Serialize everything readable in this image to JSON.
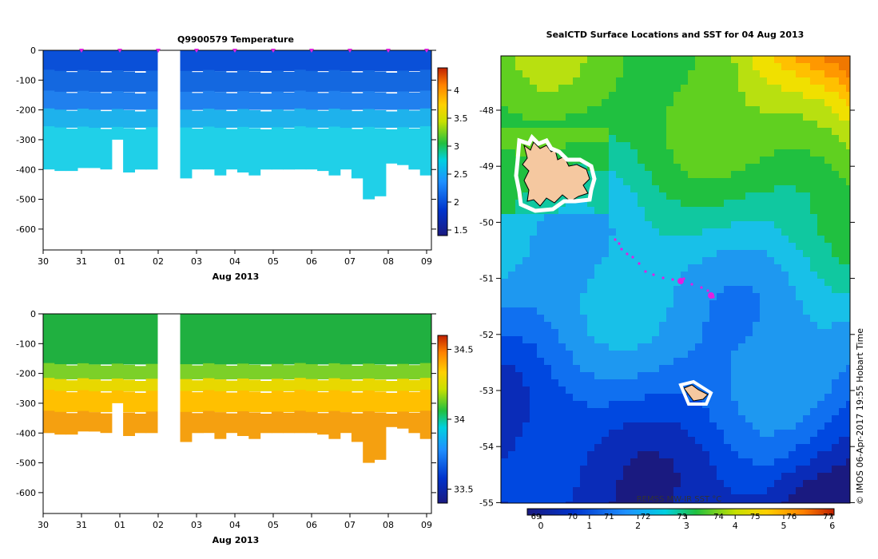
{
  "chart_data": [
    {
      "type": "heatmap",
      "title": "Q9900579  Temperature",
      "xlabel": "Aug 2013",
      "x_ticks": [
        "30",
        "31",
        "01",
        "02",
        "03",
        "04",
        "05",
        "06",
        "07",
        "08",
        "09"
      ],
      "y_ticks": [
        "0",
        "-100",
        "-200",
        "-300",
        "-400",
        "-500",
        "-600"
      ],
      "ylim": [
        -670,
        0
      ],
      "colorbar": {
        "ticks": [
          "4",
          "3.5",
          "3",
          "2.5",
          "2",
          "1.5"
        ],
        "range": [
          1.4,
          4.4
        ]
      },
      "profile_depths": [
        400,
        405,
        405,
        395,
        395,
        400,
        300,
        410,
        400,
        400,
        0,
        0,
        430,
        400,
        400,
        420,
        400,
        410,
        420,
        400,
        400,
        400,
        400,
        400,
        405,
        420,
        400,
        430,
        500,
        490,
        380,
        385,
        400,
        420
      ]
    },
    {
      "type": "heatmap",
      "xlabel": "Aug 2013",
      "x_ticks": [
        "30",
        "31",
        "01",
        "02",
        "03",
        "04",
        "05",
        "06",
        "07",
        "08",
        "09"
      ],
      "y_ticks": [
        "0",
        "-100",
        "-200",
        "-300",
        "-400",
        "-500",
        "-600"
      ],
      "ylim": [
        -670,
        0
      ],
      "colorbar": {
        "ticks": [
          "34.5",
          "34",
          "33.5"
        ],
        "range": [
          33.4,
          34.6
        ]
      },
      "profile_depths": [
        400,
        405,
        405,
        395,
        395,
        400,
        300,
        410,
        400,
        400,
        0,
        0,
        430,
        400,
        400,
        420,
        400,
        410,
        420,
        400,
        400,
        400,
        400,
        400,
        405,
        420,
        400,
        430,
        500,
        490,
        380,
        385,
        400,
        420
      ]
    },
    {
      "type": "heatmap",
      "title": "SealCTD Surface Locations and SST for 04 Aug 2013",
      "y_ticks": [
        "-48",
        "-49",
        "-50",
        "-51",
        "-52",
        "-53",
        "-54",
        "-55"
      ],
      "ylim": [
        -55,
        -47.2
      ],
      "colorbar": {
        "label": "REMSS MW-IR SST °C",
        "ticks_upper": [
          "69",
          "70",
          "71",
          "72",
          "73",
          "74",
          "75",
          "76",
          "77"
        ],
        "ticks_lower": [
          "0",
          "1",
          "2",
          "3",
          "4",
          "5",
          "6"
        ]
      }
    }
  ],
  "footer": {
    "credit": "© IMOS 06-Apr-2017 19:55 Hobart Time"
  }
}
